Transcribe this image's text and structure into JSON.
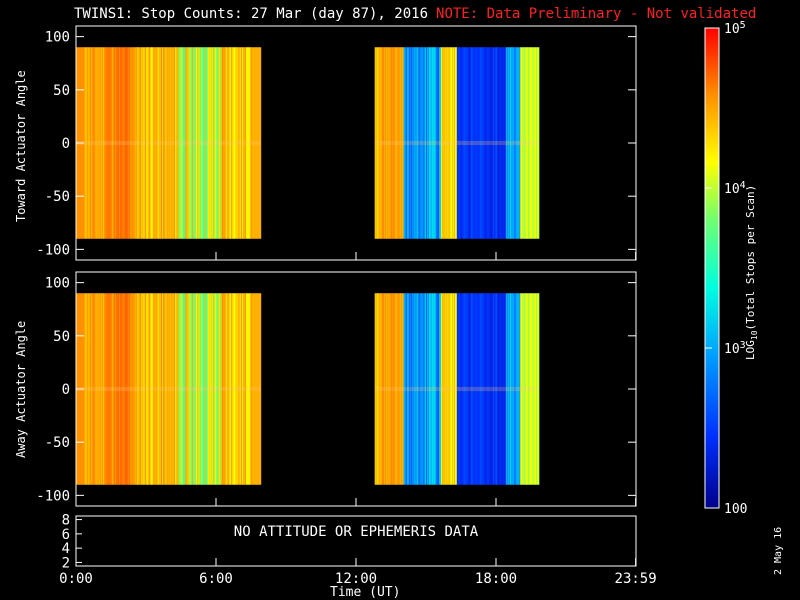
{
  "header": {
    "title": "TWINS1: Stop Counts: 27 Mar (day  87), 2016",
    "note": "NOTE: Data Preliminary - Not validated"
  },
  "stamp": "2 May 16",
  "messages": {
    "no_data": "NO ATTITUDE OR EPHEMERIS DATA"
  },
  "colors": {
    "background": "#000000",
    "axes": "#ffffff",
    "note": "#ff2020",
    "data_gap": "#000000"
  },
  "chart_data": [
    {
      "type": "heatmap",
      "panel": "top",
      "title": "",
      "ylabel": "Toward Actuator Angle",
      "ylim": [
        -110,
        110
      ],
      "yticks": [
        100,
        50,
        0,
        -50,
        -100
      ],
      "y_data_range": [
        -90,
        90
      ],
      "xlim_hours": [
        0,
        24
      ],
      "x_ranges_hours": [
        [
          0,
          7.9
        ],
        [
          12.8,
          19.8
        ]
      ],
      "zscale": "log10",
      "zlim": [
        100,
        100000
      ]
    },
    {
      "type": "heatmap",
      "panel": "middle",
      "title": "",
      "ylabel": "Away Actuator Angle",
      "ylim": [
        -110,
        110
      ],
      "yticks": [
        100,
        50,
        0,
        -50,
        -100
      ],
      "y_data_range": [
        -90,
        90
      ],
      "xlim_hours": [
        0,
        24
      ],
      "x_ranges_hours": [
        [
          0,
          7.9
        ],
        [
          12.8,
          19.8
        ]
      ],
      "zscale": "log10",
      "zlim": [
        100,
        100000
      ]
    },
    {
      "type": "line",
      "panel": "bottom",
      "ylim": [
        1.5,
        8.5
      ],
      "yticks": [
        "8",
        "6",
        "4",
        "2"
      ],
      "xticks": [
        "0:00",
        "6:00",
        "12:00",
        "18:00",
        "23:59"
      ],
      "xtick_hours": [
        0,
        6,
        12,
        18,
        23.983
      ],
      "xlabel": "Time (UT)",
      "series": []
    }
  ],
  "colorbar": {
    "label": "LOG10(Total Stops per Scan)",
    "label_prefix": "LOG",
    "label_sub": "10",
    "label_suffix": "(Total Stops per Scan)",
    "tick_values": [
      100000,
      10000,
      1000,
      100
    ],
    "tick_labels": [
      {
        "base": "10",
        "exp": "5"
      },
      {
        "base": "10",
        "exp": "4"
      },
      {
        "base": "10",
        "exp": "3"
      },
      {
        "base": "100",
        "exp": ""
      }
    ]
  }
}
